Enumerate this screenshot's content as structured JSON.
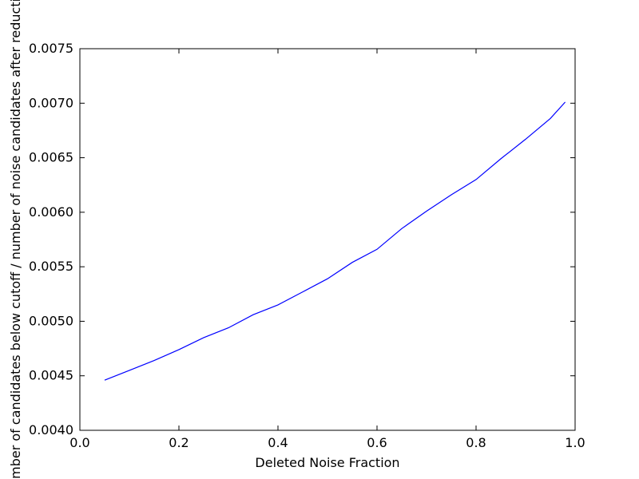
{
  "chart_data": {
    "type": "line",
    "title": "",
    "xlabel": "Deleted Noise Fraction",
    "ylabel": "Number of candidates below cutoff / number of noise candidates after reduction",
    "xlim": [
      0.0,
      1.0
    ],
    "ylim": [
      0.004,
      0.0075
    ],
    "x_ticks": [
      "0.0",
      "0.2",
      "0.4",
      "0.6",
      "0.8",
      "1.0"
    ],
    "y_ticks": [
      "0.0040",
      "0.0045",
      "0.0050",
      "0.0055",
      "0.0060",
      "0.0065",
      "0.0070",
      "0.0075"
    ],
    "grid": false,
    "legend": "none",
    "line_color": "#0000ff",
    "series": [
      {
        "x": [
          0.05,
          0.1,
          0.15,
          0.2,
          0.25,
          0.3,
          0.35,
          0.4,
          0.45,
          0.5,
          0.55,
          0.6,
          0.65,
          0.7,
          0.75,
          0.8,
          0.85,
          0.9,
          0.95,
          0.98
        ],
        "y": [
          0.00446,
          0.00455,
          0.00464,
          0.00474,
          0.00485,
          0.00494,
          0.00506,
          0.00515,
          0.00527,
          0.00539,
          0.00554,
          0.00566,
          0.00585,
          0.00601,
          0.00616,
          0.0063,
          0.00649,
          0.00667,
          0.00686,
          0.00701
        ]
      }
    ]
  }
}
